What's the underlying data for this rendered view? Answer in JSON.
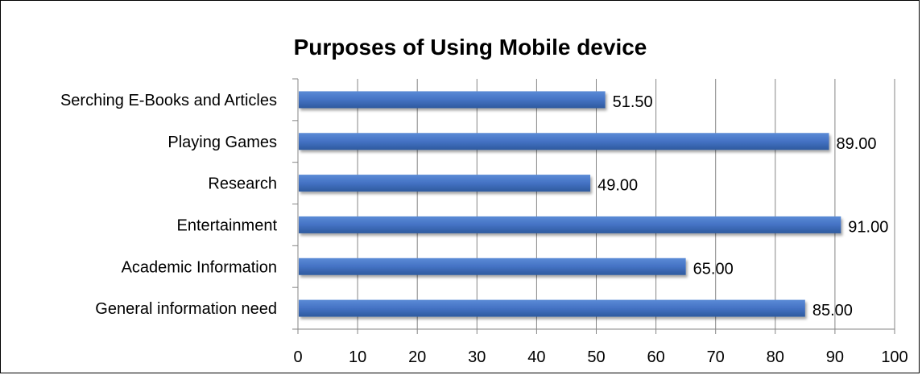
{
  "chart_data": {
    "type": "bar",
    "orientation": "horizontal",
    "title": "Purposes of Using Mobile device",
    "categories": [
      "Serching E-Books and Articles",
      "Playing Games",
      "Research",
      "Entertainment",
      "Academic Information",
      "General  information need"
    ],
    "values": [
      51.5,
      89.0,
      49.0,
      91.0,
      65.0,
      85.0
    ],
    "value_labels": [
      "51.50",
      "89.00",
      "49.00",
      "91.00",
      "65.00",
      "85.00"
    ],
    "xlim": [
      0,
      100
    ],
    "xticks": [
      "0",
      "10",
      "20",
      "30",
      "40",
      "50",
      "60",
      "70",
      "80",
      "90",
      "100"
    ],
    "grid": "vertical",
    "legend": "none",
    "colors": {
      "bar": "#4472C4",
      "bar_dark": "#2E5A9E",
      "grid": "#868686",
      "axis": "#868686",
      "text": "#000000"
    }
  }
}
